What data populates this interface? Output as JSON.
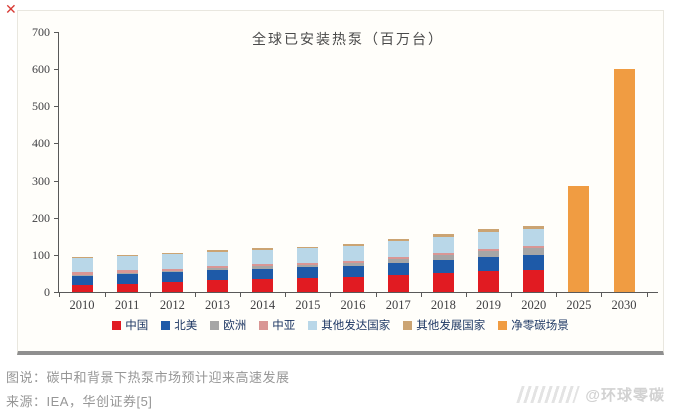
{
  "page": {
    "close_glyph": "✕",
    "watermark_handle": "@环球零碳"
  },
  "caption": {
    "figure_note": "图说：碳中和背景下热泵市场预计迎来高速发展",
    "source": "来源：IEA，华创证券[5]"
  },
  "chart_data": {
    "type": "bar",
    "stacked": true,
    "title": "全球已安装热泵（百万台）",
    "unit": "百万台",
    "grid": false,
    "legend_position": "bottom",
    "ylim": [
      0,
      700
    ],
    "ytick_step": 100,
    "categories": [
      "2010",
      "2011",
      "2012",
      "2013",
      "2014",
      "2015",
      "2016",
      "2017",
      "2018",
      "2019",
      "2020",
      "2025",
      "2030"
    ],
    "series": [
      {
        "name": "中国",
        "color": "#e11b22",
        "values": [
          18,
          22,
          26,
          31,
          35,
          37,
          40,
          46,
          51,
          57,
          60,
          0,
          0
        ]
      },
      {
        "name": "北美",
        "color": "#1e5aa8",
        "values": [
          26,
          26,
          27,
          28,
          28,
          29,
          30,
          32,
          35,
          38,
          40,
          0,
          0
        ]
      },
      {
        "name": "欧洲",
        "color": "#a6a6a6",
        "values": [
          3,
          4,
          4,
          5,
          6,
          7,
          8,
          10,
          13,
          16,
          18,
          0,
          0
        ]
      },
      {
        "name": "中亚",
        "color": "#d99694",
        "values": [
          6,
          6,
          6,
          6,
          6,
          6,
          6,
          6,
          6,
          6,
          6,
          0,
          0
        ]
      },
      {
        "name": "其他发达国家",
        "color": "#b9d7e8",
        "values": [
          39,
          39,
          39,
          39,
          39,
          39,
          40,
          42,
          44,
          45,
          45,
          0,
          0
        ]
      },
      {
        "name": "其他发展国家",
        "color": "#cba473",
        "values": [
          3,
          3,
          4,
          4,
          4,
          4,
          4,
          6,
          7,
          8,
          8,
          0,
          0
        ]
      },
      {
        "name": "净零碳场景",
        "color": "#f09c42",
        "values": [
          0,
          0,
          0,
          0,
          0,
          0,
          0,
          0,
          0,
          0,
          0,
          285,
          600
        ]
      }
    ],
    "totals": [
      95,
      100,
      106,
      113,
      118,
      122,
      128,
      142,
      156,
      170,
      177,
      285,
      600
    ]
  }
}
